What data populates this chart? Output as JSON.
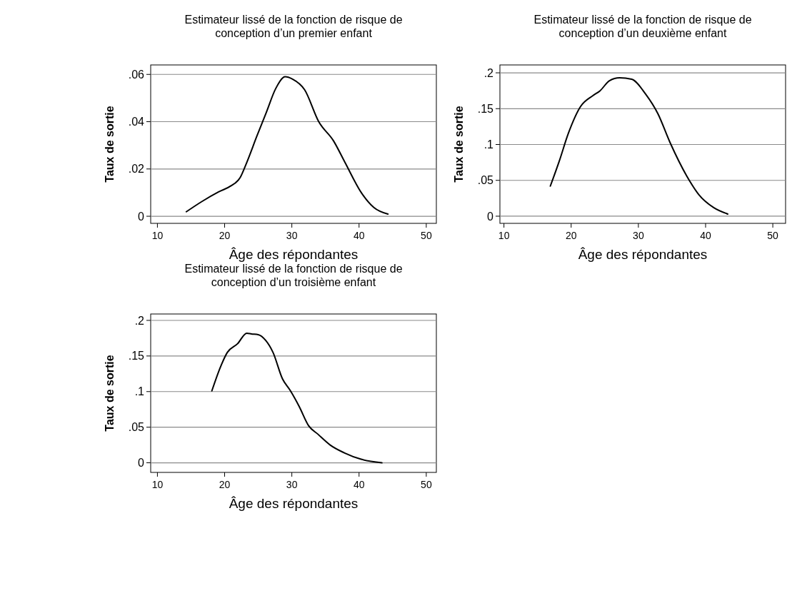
{
  "chart_data": [
    {
      "type": "line",
      "title": "Estimateur lissé de la fonction de risque de\nconception d’un premier enfant",
      "xlabel": "Âge des répondantes",
      "ylabel": "Taux de sortie",
      "xlim": [
        9,
        51.5
      ],
      "xticks": [
        10,
        20,
        30,
        40,
        50
      ],
      "ylim": [
        -0.003,
        0.064
      ],
      "yticks": [
        {
          "value": 0,
          "label": "0"
        },
        {
          "value": 0.02,
          "label": ".02"
        },
        {
          "value": 0.04,
          "label": ".04"
        },
        {
          "value": 0.06,
          "label": ".06"
        }
      ],
      "grid": "y",
      "series": [
        {
          "color": "#000000",
          "x": [
            14.3,
            16.6,
            19.1,
            20.9,
            22.3,
            23.3,
            24.8,
            26.2,
            27.6,
            29.0,
            30.1,
            31.9,
            34.0,
            36.2,
            37.9,
            40.4,
            42.2,
            44.3
          ],
          "values": [
            0.0019,
            0.0062,
            0.0103,
            0.0128,
            0.0163,
            0.0228,
            0.0339,
            0.0439,
            0.054,
            0.059,
            0.058,
            0.0535,
            0.04,
            0.0319,
            0.0228,
            0.0097,
            0.0037,
            0.0009
          ]
        }
      ]
    },
    {
      "type": "line",
      "title": "Estimateur lissé de la fonction de risque de\nconception d’un deuxième enfant",
      "xlabel": "Âge des répondantes",
      "ylabel": "Taux de sortie",
      "xlim": [
        9.4,
        51.9
      ],
      "xticks": [
        10,
        20,
        30,
        40,
        50
      ],
      "ylim": [
        -0.01,
        0.211
      ],
      "yticks": [
        {
          "value": 0,
          "label": "0"
        },
        {
          "value": 0.05,
          "label": ".05"
        },
        {
          "value": 0.1,
          "label": ".1"
        },
        {
          "value": 0.15,
          "label": ".15"
        },
        {
          "value": 0.2,
          "label": ".2"
        }
      ],
      "grid": "y",
      "series": [
        {
          "color": "#000000",
          "x": [
            16.9,
            18.2,
            19.6,
            21.4,
            23.2,
            24.3,
            25.7,
            27.2,
            29.0,
            31.1,
            32.9,
            34.7,
            37.2,
            39.0,
            41.2,
            43.3
          ],
          "values": [
            0.042,
            0.076,
            0.116,
            0.153,
            0.168,
            0.175,
            0.189,
            0.193,
            0.191,
            0.17,
            0.143,
            0.103,
            0.056,
            0.03,
            0.012,
            0.003
          ]
        }
      ]
    },
    {
      "type": "line",
      "title": "Estimateur lissé de la fonction de risque de\nconception d’un troisième enfant",
      "xlabel": "Âge des répondantes",
      "ylabel": "Taux de sortie",
      "xlim": [
        9,
        51.5
      ],
      "xticks": [
        10,
        20,
        30,
        40,
        50
      ],
      "ylim": [
        -0.0135,
        0.209
      ],
      "yticks": [
        {
          "value": 0,
          "label": "0"
        },
        {
          "value": 0.05,
          "label": ".05"
        },
        {
          "value": 0.1,
          "label": ".1"
        },
        {
          "value": 0.15,
          "label": ".15"
        },
        {
          "value": 0.2,
          "label": ".2"
        }
      ],
      "grid": "y",
      "series": [
        {
          "color": "#000000",
          "x": [
            18.1,
            19.4,
            20.4,
            21.9,
            23.3,
            24.0,
            25.0,
            26.1,
            27.2,
            28.6,
            29.8,
            31.1,
            32.5,
            33.9,
            35.7,
            37.8,
            40.3,
            43.4
          ],
          "values": [
            0.101,
            0.135,
            0.155,
            0.167,
            0.182,
            0.181,
            0.18,
            0.172,
            0.155,
            0.118,
            0.101,
            0.079,
            0.052,
            0.04,
            0.025,
            0.014,
            0.005,
            0
          ]
        }
      ]
    }
  ]
}
